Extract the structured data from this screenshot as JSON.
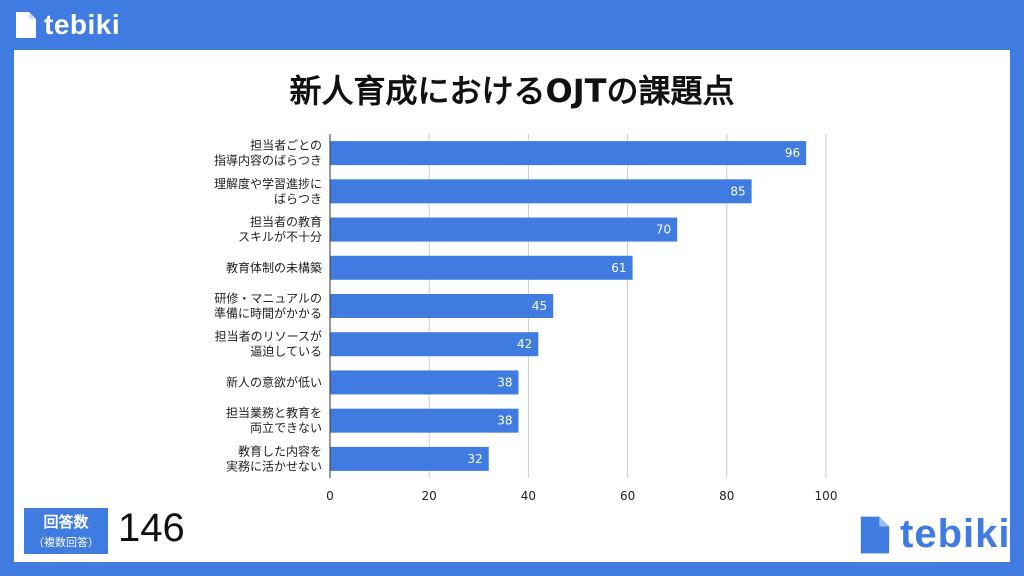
{
  "brand": {
    "name": "tebiki",
    "header_color": "#3f7be0",
    "bar_color": "#3f7be0"
  },
  "header": {
    "logo_text": "tebiki"
  },
  "footer": {
    "logo_text": "tebiki"
  },
  "respondents": {
    "label": "回答数",
    "sublabel": "（複数回答）",
    "count": "146"
  },
  "chart_data": {
    "type": "bar",
    "orientation": "horizontal",
    "title": "新人育成におけるOJTの課題点",
    "categories": [
      [
        "担当者ごとの",
        "指導内容のばらつき"
      ],
      [
        "理解度や学習進捗に",
        "ばらつき"
      ],
      [
        "担当者の教育",
        "スキルが不十分"
      ],
      [
        "教育体制の未構築"
      ],
      [
        "研修・マニュアルの",
        "準備に時間がかかる"
      ],
      [
        "担当者のリソースが",
        "逼迫している"
      ],
      [
        "新人の意欲が低い"
      ],
      [
        "担当業務と教育を",
        "両立できない"
      ],
      [
        "教育した内容を",
        "実務に活かせない"
      ]
    ],
    "values": [
      96,
      85,
      70,
      61,
      45,
      42,
      38,
      38,
      32
    ],
    "xlim": [
      0,
      100
    ],
    "x_ticks": [
      0,
      20,
      40,
      60,
      80,
      100
    ],
    "grid": true,
    "data_labels": true,
    "legend": "none"
  }
}
